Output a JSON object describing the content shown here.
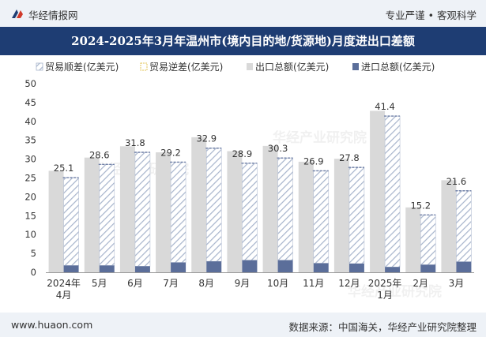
{
  "header": {
    "site_name": "华经情报网",
    "tagline": "专业严谨 • 客观科学",
    "title": "2024-2025年3月年温州市(境内目的地/货源地)月度进出口差额"
  },
  "footer": {
    "url": "www.huaon.com",
    "source": "数据来源：中国海关，华经产业研究院整理"
  },
  "watermark": "华经产业研究院",
  "colors": {
    "header_bg": "#1e3d73",
    "bar_gray": "#d9d9d9",
    "bar_navy": "#5b6e9a",
    "hatch": "#a7b4cc",
    "topbar_bg": "#eef2f7"
  },
  "chart_data": {
    "type": "bar",
    "title": "2024-2025年3月年温州市(境内目的地/货源地)月度进出口差额",
    "categories": [
      "2024年\n4月",
      "5月",
      "6月",
      "7月",
      "8月",
      "9月",
      "10月",
      "11月",
      "12月",
      "2025年\n1月",
      "2月",
      "3月"
    ],
    "series": [
      {
        "name": "贸易顺差(亿美元)",
        "values": [
          25.1,
          28.6,
          31.8,
          29.2,
          32.9,
          28.9,
          30.3,
          26.9,
          27.8,
          41.4,
          15.2,
          21.6
        ]
      },
      {
        "name": "贸易逆差(亿美元)",
        "values": [
          0,
          0,
          0,
          0,
          0,
          0,
          0,
          0,
          0,
          0,
          0,
          0
        ]
      },
      {
        "name": "出口总额(亿美元)",
        "values": [
          26.9,
          30.4,
          33.4,
          31.8,
          35.8,
          32.1,
          33.5,
          29.3,
          30.1,
          42.8,
          17.2,
          24.4
        ]
      },
      {
        "name": "进口总额(亿美元)",
        "values": [
          1.8,
          1.8,
          1.6,
          2.6,
          2.9,
          3.2,
          3.2,
          2.4,
          2.3,
          1.4,
          2.0,
          2.8
        ]
      }
    ],
    "ylim": [
      0,
      50
    ],
    "yticks": [
      0,
      5,
      10,
      15,
      20,
      25,
      30,
      35,
      40,
      45,
      50
    ],
    "xlabel": "",
    "ylabel": "",
    "legend_position": "top"
  }
}
